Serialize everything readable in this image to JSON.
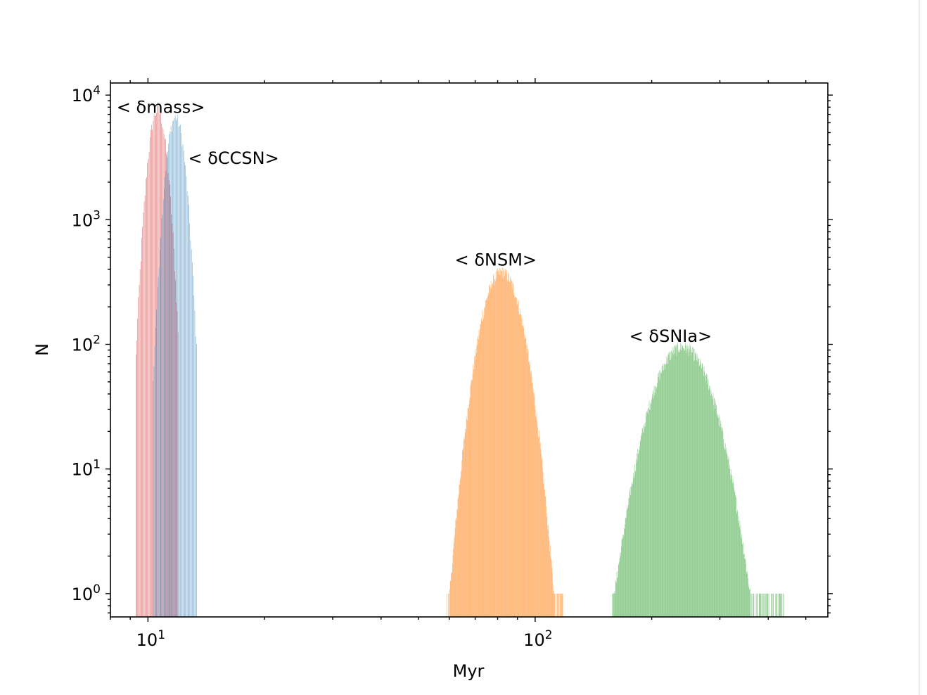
{
  "chart_data": {
    "type": "histogram",
    "xlabel": "Myr",
    "ylabel": "N",
    "xscale": "log",
    "yscale": "log",
    "xlim": [
      8.0,
      570.0
    ],
    "ylim": [
      0.65,
      12500
    ],
    "xticks": [
      {
        "base": "10",
        "exp": "1",
        "value": 10
      },
      {
        "base": "10",
        "exp": "2",
        "value": 100
      }
    ],
    "yticks": [
      {
        "base": "10",
        "exp": "0",
        "value": 1
      },
      {
        "base": "10",
        "exp": "1",
        "value": 10
      },
      {
        "base": "10",
        "exp": "2",
        "value": 100
      },
      {
        "base": "10",
        "exp": "3",
        "value": 1000
      },
      {
        "base": "10",
        "exp": "4",
        "value": 10000
      }
    ],
    "grid": false,
    "series": [
      {
        "name": "< δmass>",
        "color": "#d62728",
        "opacity": 0.65,
        "peak_x": 10.6,
        "peak_count": 7500,
        "sigma_log10": 0.0185,
        "x_range": [
          9.3,
          12.0
        ],
        "bins": 52
      },
      {
        "name": "< δCCSN>",
        "color": "#1f77b4",
        "opacity": 0.6,
        "peak_x": 11.8,
        "peak_count": 6600,
        "sigma_log10": 0.0185,
        "x_range": [
          10.3,
          13.4
        ],
        "bins": 52
      },
      {
        "name": "< δNSM>",
        "color": "#ff7f0e",
        "opacity": 0.55,
        "peak_x": 82.0,
        "peak_count": 380,
        "sigma_log10": 0.039,
        "x_range": [
          59.0,
          118.0
        ],
        "bins": 260
      },
      {
        "name": "< δSNIa>",
        "color": "#2ca02c",
        "opacity": 0.5,
        "peak_x": 240.0,
        "peak_count": 95,
        "sigma_log10": 0.058,
        "x_range": [
          158.0,
          440.0
        ],
        "bins": 420
      }
    ],
    "annotations": [
      {
        "text": "< δmass>",
        "x": 8.3,
        "y": 7200
      },
      {
        "text": "< δCCSN>",
        "x": 12.7,
        "y": 2800
      },
      {
        "text": "< δNSM>",
        "x": 62.0,
        "y": 430
      },
      {
        "text": "< δSNIa>",
        "x": 175.0,
        "y": 105
      }
    ]
  }
}
